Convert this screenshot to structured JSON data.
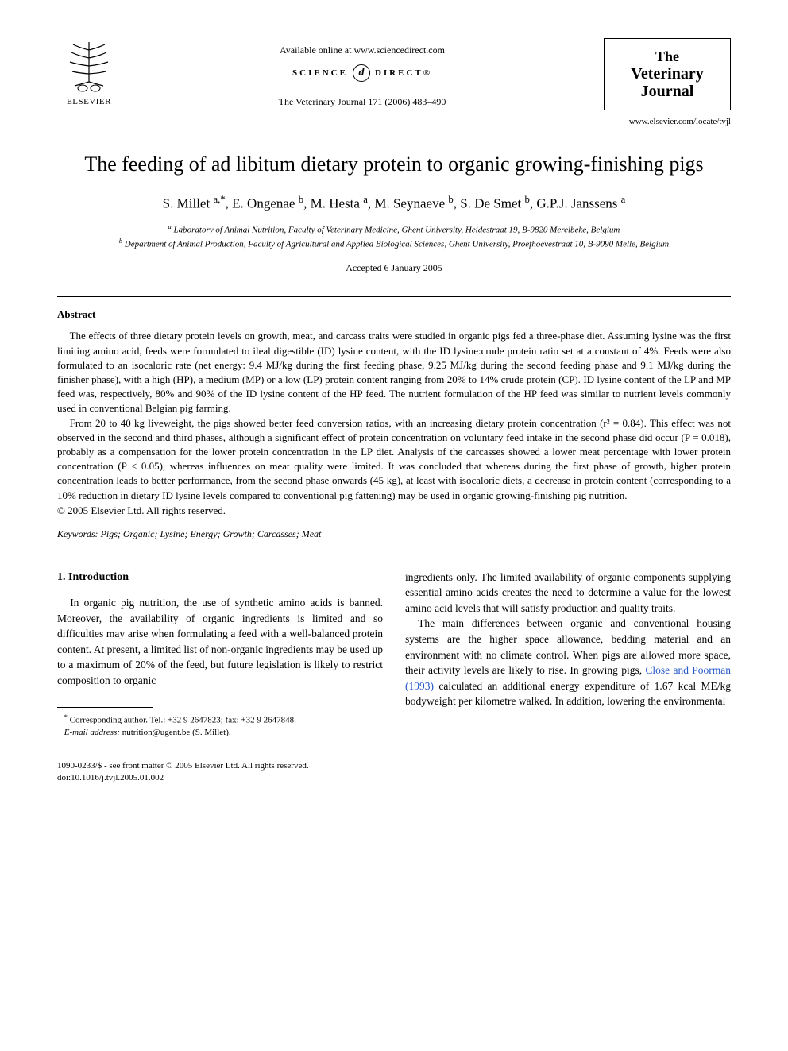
{
  "header": {
    "publisher_name": "ELSEVIER",
    "available_online": "Available online at www.sciencedirect.com",
    "science_direct_left": "SCIENCE",
    "science_direct_right": "DIRECT®",
    "journal_ref": "The Veterinary Journal 171 (2006) 483–490",
    "journal_logo_the": "The",
    "journal_logo_name": "Veterinary Journal",
    "journal_url": "www.elsevier.com/locate/tvjl"
  },
  "article": {
    "title": "The feeding of ad libitum dietary protein to organic growing-finishing pigs",
    "authors_html": "S. Millet <sup>a,*</sup>, E. Ongenae <sup>b</sup>, M. Hesta <sup>a</sup>, M. Seynaeve <sup>b</sup>, S. De Smet <sup>b</sup>, G.P.J. Janssens <sup>a</sup>",
    "affiliation_a": "Laboratory of Animal Nutrition, Faculty of Veterinary Medicine, Ghent University, Heidestraat 19, B-9820 Merelbeke, Belgium",
    "affiliation_b": "Department of Animal Production, Faculty of Agricultural and Applied Biological Sciences, Ghent University, Proefhoevestraat 10, B-9090 Melle, Belgium",
    "accepted": "Accepted 6 January 2005"
  },
  "abstract": {
    "heading": "Abstract",
    "para1": "The effects of three dietary protein levels on growth, meat, and carcass traits were studied in organic pigs fed a three-phase diet. Assuming lysine was the first limiting amino acid, feeds were formulated to ileal digestible (ID) lysine content, with the ID lysine:crude protein ratio set at a constant of 4%. Feeds were also formulated to an isocaloric rate (net energy: 9.4 MJ/kg during the first feeding phase, 9.25 MJ/kg during the second feeding phase and 9.1 MJ/kg during the finisher phase), with a high (HP), a medium (MP) or a low (LP) protein content ranging from 20% to 14% crude protein (CP). ID lysine content of the LP and MP feed was, respectively, 80% and 90% of the ID lysine content of the HP feed. The nutrient formulation of the HP feed was similar to nutrient levels commonly used in conventional Belgian pig farming.",
    "para2": "From 20 to 40 kg liveweight, the pigs showed better feed conversion ratios, with an increasing dietary protein concentration (r² = 0.84). This effect was not observed in the second and third phases, although a significant effect of protein concentration on voluntary feed intake in the second phase did occur (P = 0.018), probably as a compensation for the lower protein concentration in the LP diet. Analysis of the carcasses showed a lower meat percentage with lower protein concentration (P < 0.05), whereas influences on meat quality were limited. It was concluded that whereas during the first phase of growth, higher protein concentration leads to better performance, from the second phase onwards (45 kg), at least with isocaloric diets, a decrease in protein content (corresponding to a 10% reduction in dietary ID lysine levels compared to conventional pig fattening) may be used in organic growing-finishing pig nutrition.",
    "copyright": "© 2005 Elsevier Ltd. All rights reserved."
  },
  "keywords": {
    "label": "Keywords:",
    "list": "Pigs; Organic; Lysine; Energy; Growth; Carcasses; Meat"
  },
  "body": {
    "section_heading": "1. Introduction",
    "col1_p1": "In organic pig nutrition, the use of synthetic amino acids is banned. Moreover, the availability of organic ingredients is limited and so difficulties may arise when formulating a feed with a well-balanced protein content. At present, a limited list of non-organic ingredients may be used up to a maximum of 20% of the feed, but future legislation is likely to restrict composition to organic",
    "col2_p1_pre": "ingredients only. The limited availability of organic components supplying essential amino acids creates the need to determine a value for the lowest amino acid levels that will satisfy production and quality traits.",
    "col2_p2_pre": "The main differences between organic and conventional housing systems are the higher space allowance, bedding material and an environment with no climate control. When pigs are allowed more space, their activity levels are likely to rise. In growing pigs, ",
    "col2_citation": "Close and Poorman (1993)",
    "col2_p2_post": " calculated an additional energy expenditure of 1.67 kcal ME/kg bodyweight per kilometre walked. In addition, lowering the environmental"
  },
  "footnote": {
    "corresponding": "Corresponding author. Tel.: +32 9 2647823; fax: +32 9 2647848.",
    "email_label": "E-mail address:",
    "email": "nutrition@ugent.be",
    "email_author": "(S. Millet)."
  },
  "footer": {
    "line1": "1090-0233/$ - see front matter © 2005 Elsevier Ltd. All rights reserved.",
    "line2": "doi:10.1016/j.tvjl.2005.01.002"
  },
  "colors": {
    "text": "#000000",
    "background": "#ffffff",
    "citation_link": "#2458c9"
  }
}
